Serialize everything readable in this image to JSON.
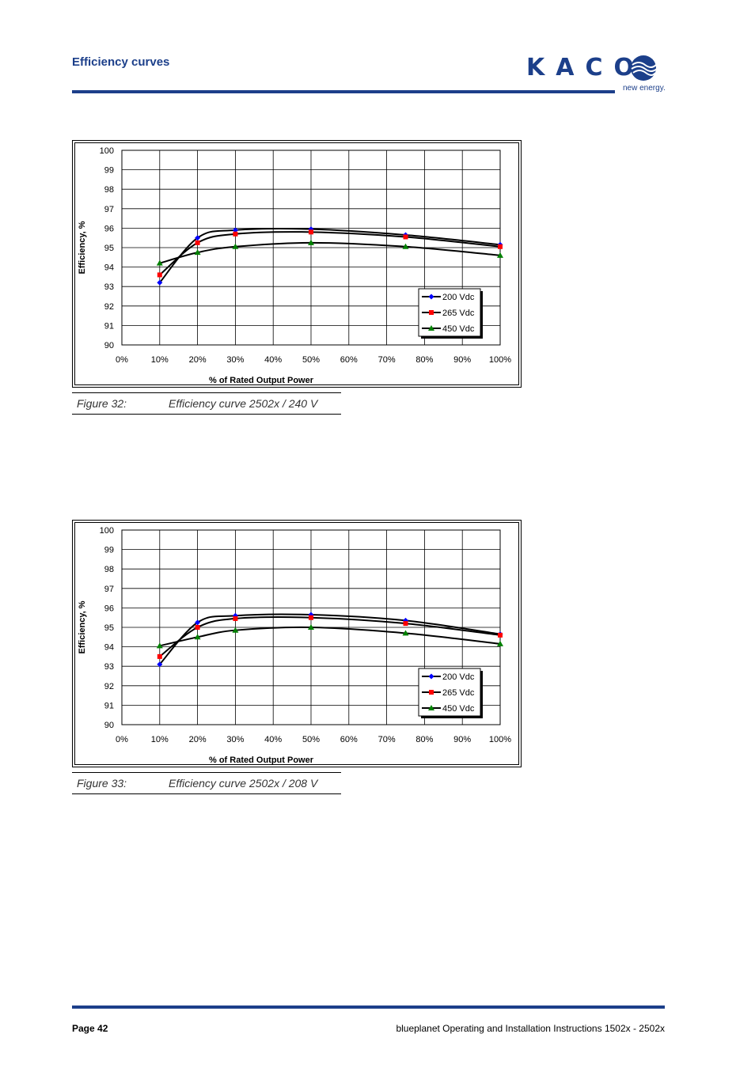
{
  "header": {
    "title": "Efficiency curves"
  },
  "logo": {
    "wordmark": "KACO",
    "tagline": "new energy."
  },
  "footer": {
    "page": "Page 42",
    "doc_title": "blueplanet Operating and Installation Instructions 1502x - 2502x"
  },
  "colors": {
    "brand": "#1c3f8a",
    "series_200": "#0000ff",
    "series_265": "#ff0000",
    "series_450": "#008000"
  },
  "chart_data": [
    {
      "type": "line",
      "caption_number": "Figure 32:",
      "caption_text": "Efficiency curve 2502x / 240 V",
      "xlabel": "% of Rated Output Power",
      "ylabel": "Efficiency, %",
      "x_ticks": [
        "0%",
        "10%",
        "20%",
        "30%",
        "40%",
        "50%",
        "60%",
        "70%",
        "80%",
        "90%",
        "100%"
      ],
      "y_ticks": [
        "90",
        "91",
        "92",
        "93",
        "94",
        "95",
        "96",
        "97",
        "98",
        "99",
        "100"
      ],
      "xlim": [
        0,
        100
      ],
      "ylim": [
        90,
        100
      ],
      "grid": true,
      "legend_position": "bottom-right",
      "series": [
        {
          "name": "200 Vdc",
          "marker": "diamond",
          "x": [
            10,
            20,
            30,
            50,
            75,
            100
          ],
          "y": [
            93.2,
            95.5,
            95.9,
            95.95,
            95.65,
            95.15
          ]
        },
        {
          "name": "265 Vdc",
          "marker": "square",
          "x": [
            10,
            20,
            30,
            50,
            75,
            100
          ],
          "y": [
            93.6,
            95.25,
            95.7,
            95.8,
            95.55,
            95.05
          ]
        },
        {
          "name": "450 Vdc",
          "marker": "triangle",
          "x": [
            10,
            20,
            30,
            50,
            75,
            100
          ],
          "y": [
            94.2,
            94.75,
            95.05,
            95.25,
            95.05,
            94.6
          ]
        }
      ]
    },
    {
      "type": "line",
      "caption_number": "Figure 33:",
      "caption_text": "Efficiency curve 2502x / 208 V",
      "xlabel": "% of Rated Output Power",
      "ylabel": "Efficiency, %",
      "x_ticks": [
        "0%",
        "10%",
        "20%",
        "30%",
        "40%",
        "50%",
        "60%",
        "70%",
        "80%",
        "90%",
        "100%"
      ],
      "y_ticks": [
        "90",
        "91",
        "92",
        "93",
        "94",
        "95",
        "96",
        "97",
        "98",
        "99",
        "100"
      ],
      "xlim": [
        0,
        100
      ],
      "ylim": [
        90,
        100
      ],
      "grid": true,
      "legend_position": "bottom-right",
      "series": [
        {
          "name": "200 Vdc",
          "marker": "diamond",
          "x": [
            10,
            20,
            30,
            50,
            75,
            100
          ],
          "y": [
            93.1,
            95.25,
            95.6,
            95.65,
            95.35,
            94.65
          ]
        },
        {
          "name": "265 Vdc",
          "marker": "square",
          "x": [
            10,
            20,
            30,
            50,
            75,
            100
          ],
          "y": [
            93.5,
            95.0,
            95.45,
            95.5,
            95.2,
            94.6
          ]
        },
        {
          "name": "450 Vdc",
          "marker": "triangle",
          "x": [
            10,
            20,
            30,
            50,
            75,
            100
          ],
          "y": [
            94.05,
            94.5,
            94.85,
            95.0,
            94.7,
            94.15
          ]
        }
      ]
    }
  ]
}
